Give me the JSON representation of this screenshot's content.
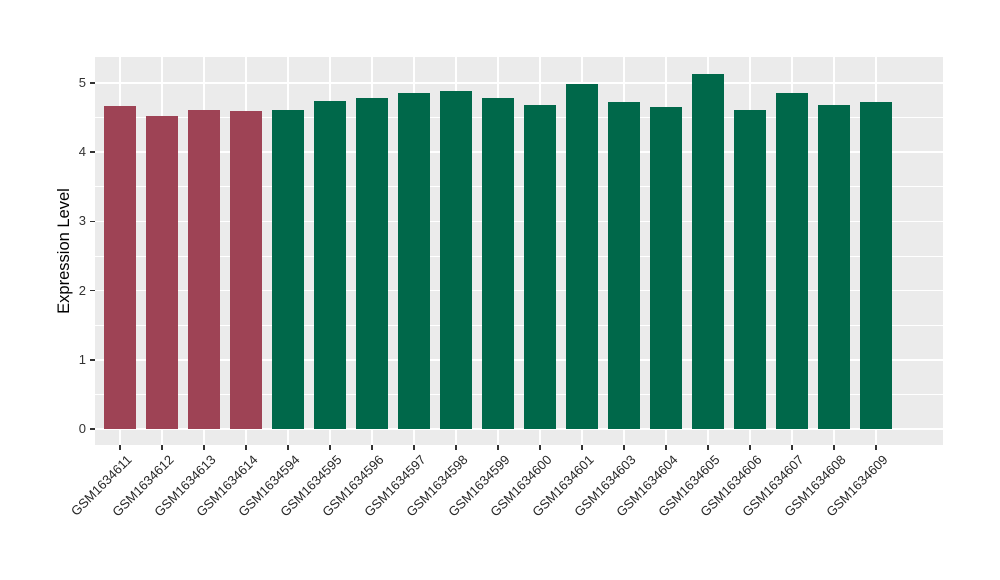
{
  "chart_data": {
    "type": "bar",
    "title": "",
    "xlabel": "",
    "ylabel": "Expression Level",
    "categories": [
      "GSM1634611",
      "GSM1634612",
      "GSM1634613",
      "GSM1634614",
      "GSM1634594",
      "GSM1634595",
      "GSM1634596",
      "GSM1634597",
      "GSM1634598",
      "GSM1634599",
      "GSM1634600",
      "GSM1634601",
      "GSM1634603",
      "GSM1634604",
      "GSM1634605",
      "GSM1634606",
      "GSM1634607",
      "GSM1634608",
      "GSM1634609"
    ],
    "values": [
      4.67,
      4.53,
      4.61,
      4.6,
      4.61,
      4.74,
      4.78,
      4.85,
      4.88,
      4.79,
      4.69,
      4.98,
      4.73,
      4.65,
      5.13,
      4.61,
      4.86,
      4.69,
      4.73
    ],
    "colors": [
      "#9E4355",
      "#9E4355",
      "#9E4355",
      "#9E4355",
      "#00684A",
      "#00684A",
      "#00684A",
      "#00684A",
      "#00684A",
      "#00684A",
      "#00684A",
      "#00684A",
      "#00684A",
      "#00684A",
      "#00684A",
      "#00684A",
      "#00684A",
      "#00684A",
      "#00684A"
    ],
    "group_colors": {
      "group1": "#9E4355",
      "group2": "#00684A"
    },
    "yticks": [
      0,
      1,
      2,
      3,
      4,
      5
    ],
    "ylim": [
      0,
      5.38
    ],
    "minor_grid_step": 0.5,
    "grid": "on",
    "legend": "none",
    "panel_bg": "#EBEBEB",
    "grid_color": "#FFFFFF",
    "axis_text_color": "#333333"
  }
}
